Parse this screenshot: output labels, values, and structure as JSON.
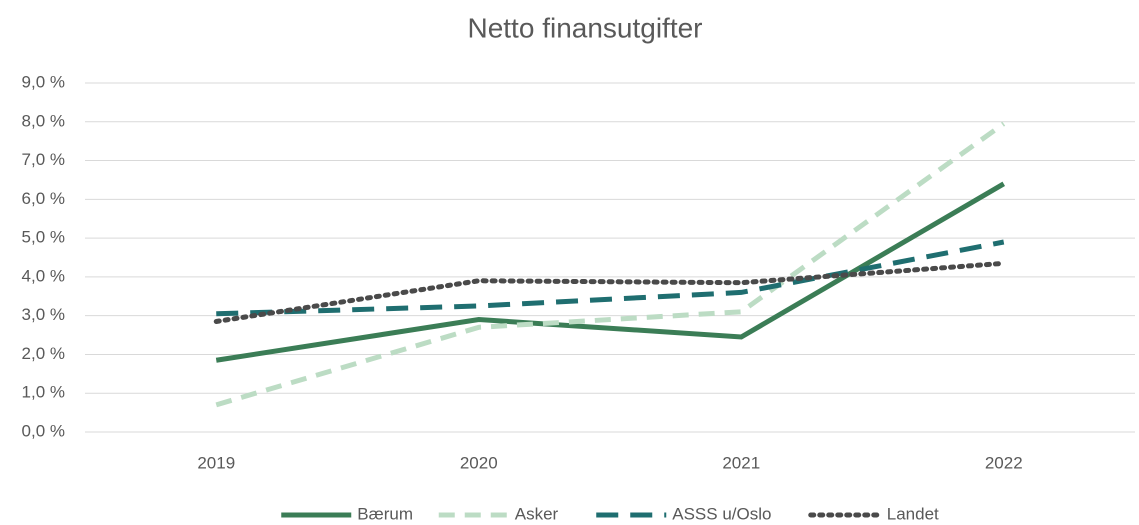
{
  "chart_data": {
    "type": "line",
    "title": "Netto finansutgifter",
    "categories": [
      "2019",
      "2020",
      "2021",
      "2022"
    ],
    "series": [
      {
        "name": "Bærum",
        "color": "#3b7d56",
        "style": "solid",
        "values": [
          1.85,
          2.9,
          2.45,
          6.4
        ]
      },
      {
        "name": "Asker",
        "color": "#bcdcc4",
        "style": "dashed",
        "values": [
          0.7,
          2.7,
          3.1,
          7.95
        ]
      },
      {
        "name": "ASSS u/Oslo",
        "color": "#1f6e70",
        "style": "longdash",
        "values": [
          3.05,
          3.25,
          3.6,
          4.9
        ]
      },
      {
        "name": "Landet",
        "color": "#4a4a4a",
        "style": "dotted",
        "values": [
          2.85,
          3.9,
          3.85,
          4.35
        ]
      }
    ],
    "ylim": [
      0,
      9
    ],
    "yticks": [
      {
        "value": 0,
        "label": "0,0 %"
      },
      {
        "value": 1,
        "label": "1,0 %"
      },
      {
        "value": 2,
        "label": "2,0 %"
      },
      {
        "value": 3,
        "label": "3,0 %"
      },
      {
        "value": 4,
        "label": "4,0 %"
      },
      {
        "value": 5,
        "label": "5,0 %"
      },
      {
        "value": 6,
        "label": "6,0 %"
      },
      {
        "value": 7,
        "label": "7,0 %"
      },
      {
        "value": 8,
        "label": "8,0 %"
      },
      {
        "value": 9,
        "label": "9,0 %"
      }
    ],
    "grid": true,
    "legend": "bottom"
  }
}
